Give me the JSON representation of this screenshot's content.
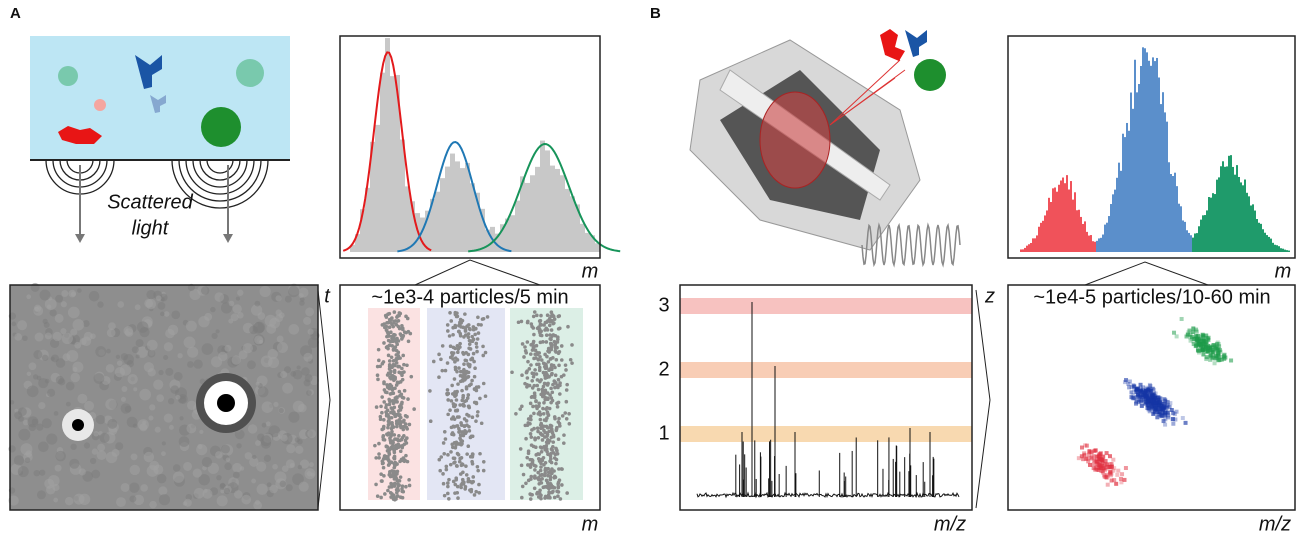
{
  "panels": [
    {
      "label": "A",
      "illustration_caption": [
        "Scattered",
        "light"
      ],
      "histogram_axis": "m",
      "scatter": {
        "title": "~1e3-4 particles/5 min",
        "y_axis": "t",
        "x_axis": "m"
      }
    },
    {
      "label": "B",
      "histogram_axis": "m",
      "spectrum": {
        "x_axis": "m/z",
        "y_axis": "z",
        "charge_states": [
          "3",
          "2",
          "1"
        ]
      },
      "density": {
        "title": "~1e4-5 particles/10-60 min",
        "x_axis": "m/z"
      }
    }
  ]
}
